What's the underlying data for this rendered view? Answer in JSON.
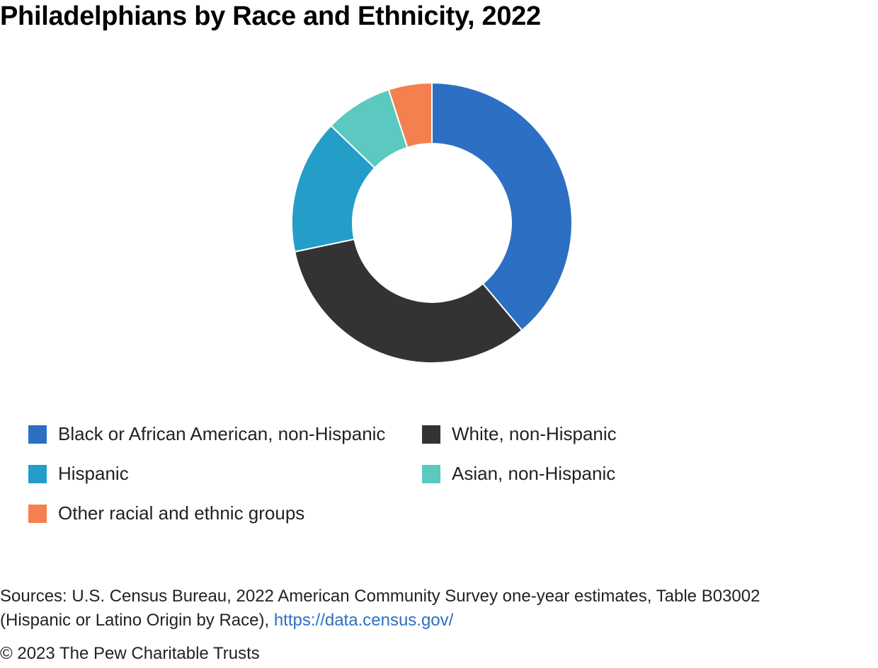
{
  "chart_data": {
    "type": "pie",
    "subtype": "donut",
    "title": "Philadelphians by Race and Ethnicity, 2022",
    "categories": [
      "Black or African American, non-Hispanic",
      "White, non-Hispanic",
      "Hispanic",
      "Asian, non-Hispanic",
      "Other racial and ethnic groups"
    ],
    "values": [
      38.9,
      32.8,
      15.5,
      7.8,
      5.0
    ],
    "units": "percent",
    "colors": [
      "#2d6fc2",
      "#333333",
      "#249dc8",
      "#5bc9bf",
      "#f5804f"
    ],
    "legend_placement": "bottom"
  },
  "footer": {
    "sources_line1": "Sources: U.S. Census Bureau, 2022 American Community Survey one-year estimates, Table B03002",
    "sources_line2": "(Hispanic or Latino Origin by Race),",
    "sources_link": "https://data.census.gov/",
    "copyright": "© 2023 The Pew Charitable Trusts"
  }
}
